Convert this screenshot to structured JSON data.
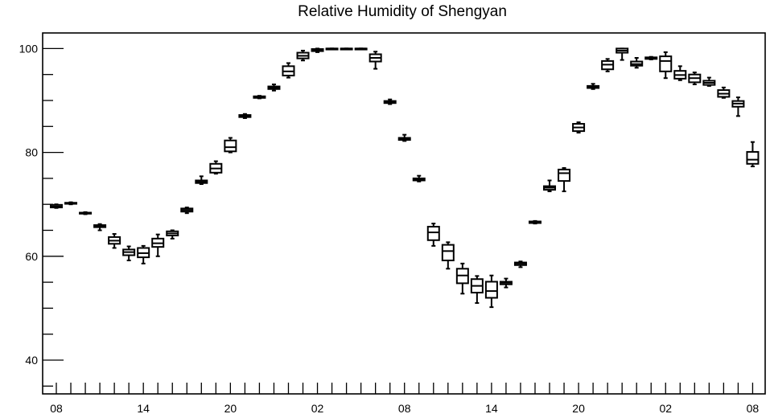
{
  "chart_data": {
    "type": "box",
    "title": "Relative Humidity of Shengyan",
    "xlabel": "",
    "ylabel": "",
    "ylim": [
      33.5,
      103
    ],
    "y_ticks": [
      40,
      60,
      80,
      100
    ],
    "x_tick_labels": [
      {
        "slot": 0,
        "label": "08"
      },
      {
        "slot": 6,
        "label": "14"
      },
      {
        "slot": 12,
        "label": "20"
      },
      {
        "slot": 18,
        "label": "02"
      },
      {
        "slot": 24,
        "label": "08"
      },
      {
        "slot": 30,
        "label": "14"
      },
      {
        "slot": 36,
        "label": "20"
      },
      {
        "slot": 42,
        "label": "02"
      },
      {
        "slot": 48,
        "label": "08"
      }
    ],
    "grid": false,
    "boxes": [
      {
        "slot": 0,
        "min": 69.3,
        "q1": 69.4,
        "median": 69.6,
        "q3": 69.9,
        "max": 70.0
      },
      {
        "slot": 1,
        "min": 70.0,
        "q1": 70.1,
        "median": 70.2,
        "q3": 70.3,
        "max": 70.4
      },
      {
        "slot": 2,
        "min": 68.1,
        "q1": 68.2,
        "median": 68.3,
        "q3": 68.4,
        "max": 68.5
      },
      {
        "slot": 3,
        "min": 65.0,
        "q1": 65.6,
        "median": 65.8,
        "q3": 66.0,
        "max": 66.2
      },
      {
        "slot": 4,
        "min": 61.6,
        "q1": 62.4,
        "median": 63.0,
        "q3": 63.7,
        "max": 64.3
      },
      {
        "slot": 5,
        "min": 59.2,
        "q1": 60.2,
        "median": 60.8,
        "q3": 61.3,
        "max": 61.9
      },
      {
        "slot": 6,
        "min": 58.6,
        "q1": 59.8,
        "median": 60.6,
        "q3": 61.6,
        "max": 62.0
      },
      {
        "slot": 7,
        "min": 60.0,
        "q1": 61.8,
        "median": 62.5,
        "q3": 63.4,
        "max": 64.2
      },
      {
        "slot": 8,
        "min": 63.4,
        "q1": 64.0,
        "median": 64.4,
        "q3": 64.8,
        "max": 65.0
      },
      {
        "slot": 9,
        "min": 68.3,
        "q1": 68.6,
        "median": 68.9,
        "q3": 69.2,
        "max": 69.4
      },
      {
        "slot": 10,
        "min": 73.9,
        "q1": 74.1,
        "median": 74.3,
        "q3": 74.6,
        "max": 75.4
      },
      {
        "slot": 11,
        "min": 75.9,
        "q1": 76.1,
        "median": 76.9,
        "q3": 77.8,
        "max": 78.3
      },
      {
        "slot": 12,
        "min": 80.0,
        "q1": 80.2,
        "median": 81.0,
        "q3": 82.3,
        "max": 82.8
      },
      {
        "slot": 13,
        "min": 86.6,
        "q1": 86.8,
        "median": 87.0,
        "q3": 87.2,
        "max": 87.4
      },
      {
        "slot": 14,
        "min": 90.4,
        "q1": 90.5,
        "median": 90.7,
        "q3": 90.8,
        "max": 90.9
      },
      {
        "slot": 15,
        "min": 91.9,
        "q1": 92.2,
        "median": 92.4,
        "q3": 92.7,
        "max": 93.1
      },
      {
        "slot": 16,
        "min": 94.4,
        "q1": 94.8,
        "median": 95.6,
        "q3": 96.6,
        "max": 97.2
      },
      {
        "slot": 17,
        "min": 97.7,
        "q1": 98.1,
        "median": 98.6,
        "q3": 99.2,
        "max": 99.6
      },
      {
        "slot": 18,
        "min": 99.3,
        "q1": 99.5,
        "median": 99.7,
        "q3": 99.9,
        "max": 100.0
      },
      {
        "slot": 19,
        "min": 100.0,
        "q1": 100.0,
        "median": 100.0,
        "q3": 100.0,
        "max": 100.0
      },
      {
        "slot": 20,
        "min": 100.0,
        "q1": 100.0,
        "median": 100.0,
        "q3": 100.0,
        "max": 100.0
      },
      {
        "slot": 21,
        "min": 100.0,
        "q1": 100.0,
        "median": 100.0,
        "q3": 100.0,
        "max": 100.0
      },
      {
        "slot": 22,
        "min": 96.1,
        "q1": 97.5,
        "median": 98.2,
        "q3": 98.9,
        "max": 99.4
      },
      {
        "slot": 23,
        "min": 89.3,
        "q1": 89.5,
        "median": 89.7,
        "q3": 89.9,
        "max": 90.2
      },
      {
        "slot": 24,
        "min": 82.2,
        "q1": 82.4,
        "median": 82.6,
        "q3": 82.8,
        "max": 83.4
      },
      {
        "slot": 25,
        "min": 74.4,
        "q1": 74.6,
        "median": 74.8,
        "q3": 75.0,
        "max": 75.5
      },
      {
        "slot": 26,
        "min": 62.0,
        "q1": 63.1,
        "median": 64.6,
        "q3": 65.7,
        "max": 66.3
      },
      {
        "slot": 27,
        "min": 57.6,
        "q1": 59.2,
        "median": 61.0,
        "q3": 62.2,
        "max": 62.7
      },
      {
        "slot": 28,
        "min": 52.8,
        "q1": 54.8,
        "median": 56.3,
        "q3": 57.6,
        "max": 58.6
      },
      {
        "slot": 29,
        "min": 51.0,
        "q1": 53.0,
        "median": 54.3,
        "q3": 55.6,
        "max": 56.2
      },
      {
        "slot": 30,
        "min": 50.2,
        "q1": 52.0,
        "median": 53.3,
        "q3": 55.1,
        "max": 56.3
      },
      {
        "slot": 31,
        "min": 54.0,
        "q1": 54.6,
        "median": 54.9,
        "q3": 55.1,
        "max": 55.7
      },
      {
        "slot": 32,
        "min": 57.9,
        "q1": 58.3,
        "median": 58.6,
        "q3": 58.8,
        "max": 59.0
      },
      {
        "slot": 33,
        "min": 66.3,
        "q1": 66.4,
        "median": 66.6,
        "q3": 66.7,
        "max": 66.8
      },
      {
        "slot": 34,
        "min": 72.5,
        "q1": 72.8,
        "median": 73.2,
        "q3": 73.5,
        "max": 74.6
      },
      {
        "slot": 35,
        "min": 72.5,
        "q1": 74.5,
        "median": 76.0,
        "q3": 76.7,
        "max": 77.0
      },
      {
        "slot": 36,
        "min": 83.8,
        "q1": 84.1,
        "median": 84.8,
        "q3": 85.5,
        "max": 85.8
      },
      {
        "slot": 37,
        "min": 92.2,
        "q1": 92.4,
        "median": 92.6,
        "q3": 92.8,
        "max": 93.2
      },
      {
        "slot": 38,
        "min": 95.6,
        "q1": 96.0,
        "median": 96.9,
        "q3": 97.6,
        "max": 98.0
      },
      {
        "slot": 39,
        "min": 97.8,
        "q1": 99.2,
        "median": 99.6,
        "q3": 100.0,
        "max": 100.0
      },
      {
        "slot": 40,
        "min": 96.3,
        "q1": 96.7,
        "median": 97.0,
        "q3": 97.5,
        "max": 98.2
      },
      {
        "slot": 41,
        "min": 97.9,
        "q1": 98.0,
        "median": 98.2,
        "q3": 98.3,
        "max": 98.4
      },
      {
        "slot": 42,
        "min": 94.3,
        "q1": 95.6,
        "median": 97.6,
        "q3": 98.5,
        "max": 99.3
      },
      {
        "slot": 43,
        "min": 93.9,
        "q1": 94.2,
        "median": 94.9,
        "q3": 95.7,
        "max": 96.6
      },
      {
        "slot": 44,
        "min": 93.1,
        "q1": 93.5,
        "median": 94.3,
        "q3": 95.0,
        "max": 95.4
      },
      {
        "slot": 45,
        "min": 92.8,
        "q1": 93.0,
        "median": 93.4,
        "q3": 93.8,
        "max": 94.4
      },
      {
        "slot": 46,
        "min": 90.5,
        "q1": 90.7,
        "median": 91.3,
        "q3": 92.0,
        "max": 92.5
      },
      {
        "slot": 47,
        "min": 87.0,
        "q1": 88.8,
        "median": 89.4,
        "q3": 89.9,
        "max": 90.6
      },
      {
        "slot": 48,
        "min": 77.3,
        "q1": 77.8,
        "median": 78.6,
        "q3": 80.1,
        "max": 82.0
      }
    ]
  }
}
